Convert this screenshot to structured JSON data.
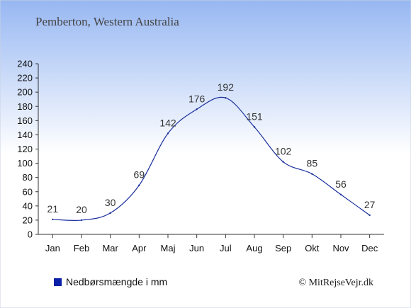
{
  "chart_data": {
    "type": "line",
    "title": "Pemberton, Western Australia",
    "categories": [
      "Jan",
      "Feb",
      "Mar",
      "Apr",
      "Maj",
      "Jun",
      "Jul",
      "Aug",
      "Sep",
      "Okt",
      "Nov",
      "Dec"
    ],
    "series": [
      {
        "name": "Nedbørsmængde i mm",
        "values": [
          21,
          20,
          30,
          69,
          142,
          176,
          192,
          151,
          102,
          85,
          56,
          27
        ],
        "color": "#1a2f9c"
      }
    ],
    "ylim": [
      0,
      240
    ],
    "yticks": [
      0,
      20,
      40,
      60,
      80,
      100,
      120,
      140,
      160,
      180,
      200,
      220,
      240
    ],
    "grid": false,
    "legend_position": "bottom-left",
    "colors": {
      "background_top": "#97b7f2",
      "background_bottom": "#ffffff",
      "line": "#1a2f9c",
      "legend_marker": "#0a1fa8",
      "text": "#333333"
    }
  },
  "credit": "© MitRejseVejr.dk"
}
